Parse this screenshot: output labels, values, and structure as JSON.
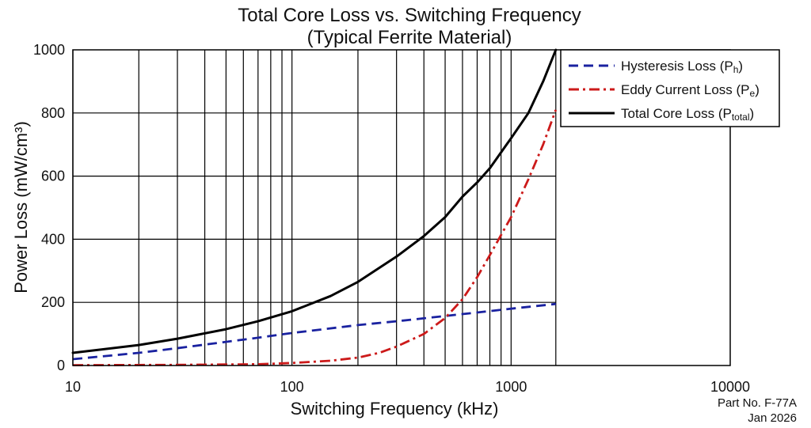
{
  "chart_data": {
    "type": "line",
    "title": "Total Core Loss vs. Switching Frequency",
    "subtitle": "(Typical Ferrite Material)",
    "xlabel": "Switching Frequency (kHz)",
    "ylabel": "Power Loss (mW/cm³)",
    "x_scale": "log",
    "xlim": [
      10,
      10000
    ],
    "ylim": [
      0,
      1000
    ],
    "x_ticks": [
      10,
      100,
      1000,
      10000
    ],
    "x_tick_labels": [
      "10",
      "100",
      "1000",
      "10000"
    ],
    "y_ticks": [
      0,
      200,
      400,
      600,
      800,
      1000
    ],
    "y_tick_labels": [
      "0",
      "200",
      "400",
      "600",
      "800",
      "1000"
    ],
    "grid": true,
    "legend_position": "top-right",
    "series": [
      {
        "name_main": "Hysteresis Loss (P",
        "name_sub": "h",
        "name_end": ")",
        "style": "dashed",
        "color": "#1a22a0",
        "x": [
          10,
          20,
          30,
          50,
          70,
          100,
          200,
          300,
          500,
          700,
          1000,
          1600
        ],
        "y": [
          20,
          40,
          55,
          75,
          88,
          103,
          128,
          140,
          157,
          168,
          180,
          195
        ]
      },
      {
        "name_main": "Eddy Current Loss (P",
        "name_sub": "e",
        "name_end": ")",
        "style": "dashdot",
        "color": "#cc1a1a",
        "x": [
          10,
          30,
          70,
          100,
          150,
          200,
          250,
          300,
          400,
          500,
          600,
          700,
          800,
          1000,
          1200,
          1400,
          1600
        ],
        "y": [
          1,
          2,
          4,
          8,
          15,
          25,
          40,
          60,
          100,
          150,
          210,
          280,
          350,
          470,
          590,
          700,
          810
        ]
      },
      {
        "name_main": "Total Core Loss (P",
        "name_sub": "total",
        "name_end": ")",
        "style": "solid",
        "color": "#000000",
        "x": [
          10,
          20,
          30,
          50,
          70,
          100,
          150,
          200,
          300,
          400,
          500,
          600,
          700,
          800,
          1000,
          1200,
          1400,
          1600
        ],
        "y": [
          40,
          65,
          85,
          115,
          140,
          172,
          220,
          265,
          345,
          410,
          470,
          535,
          580,
          625,
          720,
          800,
          900,
          1000
        ]
      }
    ]
  },
  "annotation": {
    "part_no": "Part No. F-77A",
    "date": "Jan 2026"
  }
}
